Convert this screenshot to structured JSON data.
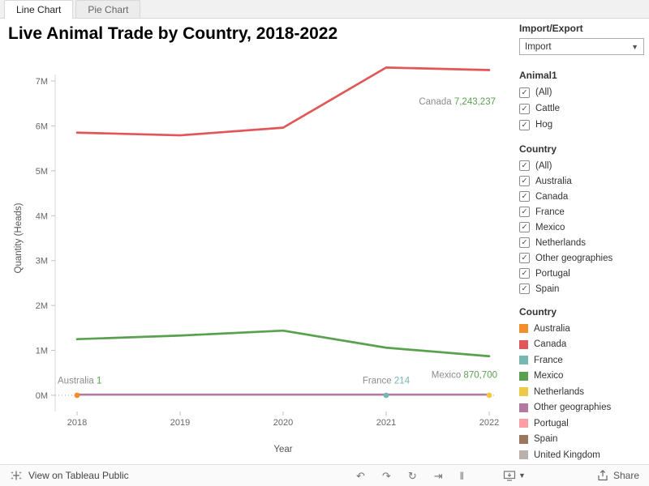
{
  "tabs": [
    {
      "label": "Line Chart",
      "active": true
    },
    {
      "label": "Pie Chart",
      "active": false
    }
  ],
  "title": "Live Animal Trade by Country, 2018-2022",
  "chart_data": {
    "type": "line",
    "title": "Live Animal Trade by Country, 2018-2022",
    "x": [
      2018,
      2019,
      2020,
      2021,
      2022
    ],
    "xlabel": "Year",
    "ylabel": "Quantity (Heads)",
    "ylim": [
      0,
      7500000
    ],
    "ytick_labels": [
      "0M",
      "1M",
      "2M",
      "3M",
      "4M",
      "5M",
      "6M",
      "7M"
    ],
    "grid": false,
    "series": [
      {
        "name": "Canada",
        "color": "#e15759",
        "values": [
          5850000,
          5790000,
          5960000,
          7300000,
          7243237
        ]
      },
      {
        "name": "Mexico",
        "color": "#59a14f",
        "values": [
          1250000,
          1330000,
          1440000,
          1060000,
          870700
        ]
      },
      {
        "name": "Other geographies",
        "color": "#b07aa1",
        "values": [
          15000,
          15000,
          15000,
          15000,
          15000
        ]
      }
    ],
    "point_marks": [
      {
        "name": "Australia",
        "color": "#f28e2b",
        "x": 2018,
        "value": 1
      },
      {
        "name": "France",
        "color": "#76b7b2",
        "x": 2021,
        "value": 214
      },
      {
        "name": "Netherlands",
        "color": "#edc948",
        "x": 2022,
        "value": 0
      }
    ],
    "annotations": [
      {
        "series": "Australia",
        "value_text": "1",
        "year": 2018,
        "y": 260000,
        "dx": -24,
        "anchor": "start",
        "value_color": "#59a14f"
      },
      {
        "series": "France",
        "value_text": "214",
        "year": 2021,
        "y": 260000,
        "dx": 0,
        "anchor": "middle",
        "value_color": "#76b7b2"
      },
      {
        "series": "Mexico",
        "value_text": "870,700",
        "year": 2022,
        "y": 390000,
        "dx": 10,
        "anchor": "end",
        "value_color": "#59a14f"
      },
      {
        "series": "Canada",
        "value_text": "7,243,237",
        "year": 2022,
        "y": 6480000,
        "dx": 8,
        "anchor": "end",
        "value_color": "#59a14f"
      }
    ]
  },
  "sidebar": {
    "import_export": {
      "label": "Import/Export",
      "selected": "Import"
    },
    "animal_filter": {
      "title": "Animal1",
      "items": [
        {
          "label": "(All)",
          "checked": true
        },
        {
          "label": "Cattle",
          "checked": true
        },
        {
          "label": "Hog",
          "checked": true
        }
      ]
    },
    "country_filter": {
      "title": "Country",
      "items": [
        {
          "label": "(All)",
          "checked": true
        },
        {
          "label": "Australia",
          "checked": true
        },
        {
          "label": "Canada",
          "checked": true
        },
        {
          "label": "France",
          "checked": true
        },
        {
          "label": "Mexico",
          "checked": true
        },
        {
          "label": "Netherlands",
          "checked": true
        },
        {
          "label": "Other geographies",
          "checked": true
        },
        {
          "label": "Portugal",
          "checked": true
        },
        {
          "label": "Spain",
          "checked": true
        }
      ]
    },
    "country_legend": {
      "title": "Country",
      "items": [
        {
          "label": "Australia",
          "color": "#f28e2b"
        },
        {
          "label": "Canada",
          "color": "#e15759"
        },
        {
          "label": "France",
          "color": "#76b7b2"
        },
        {
          "label": "Mexico",
          "color": "#59a14f"
        },
        {
          "label": "Netherlands",
          "color": "#edc948"
        },
        {
          "label": "Other geographies",
          "color": "#b07aa1"
        },
        {
          "label": "Portugal",
          "color": "#ff9da7"
        },
        {
          "label": "Spain",
          "color": "#9c755f"
        },
        {
          "label": "United Kingdom",
          "color": "#bab0ac"
        }
      ]
    }
  },
  "footer": {
    "brand_text": "View on Tableau Public",
    "share_label": "Share",
    "playback_icons": [
      {
        "name": "undo-icon",
        "glyph": "↶"
      },
      {
        "name": "redo-icon",
        "glyph": "↷"
      },
      {
        "name": "reset-icon",
        "glyph": "↻"
      },
      {
        "name": "forward-icon",
        "glyph": "⇥"
      },
      {
        "name": "pause-icon",
        "glyph": "‖"
      }
    ]
  }
}
